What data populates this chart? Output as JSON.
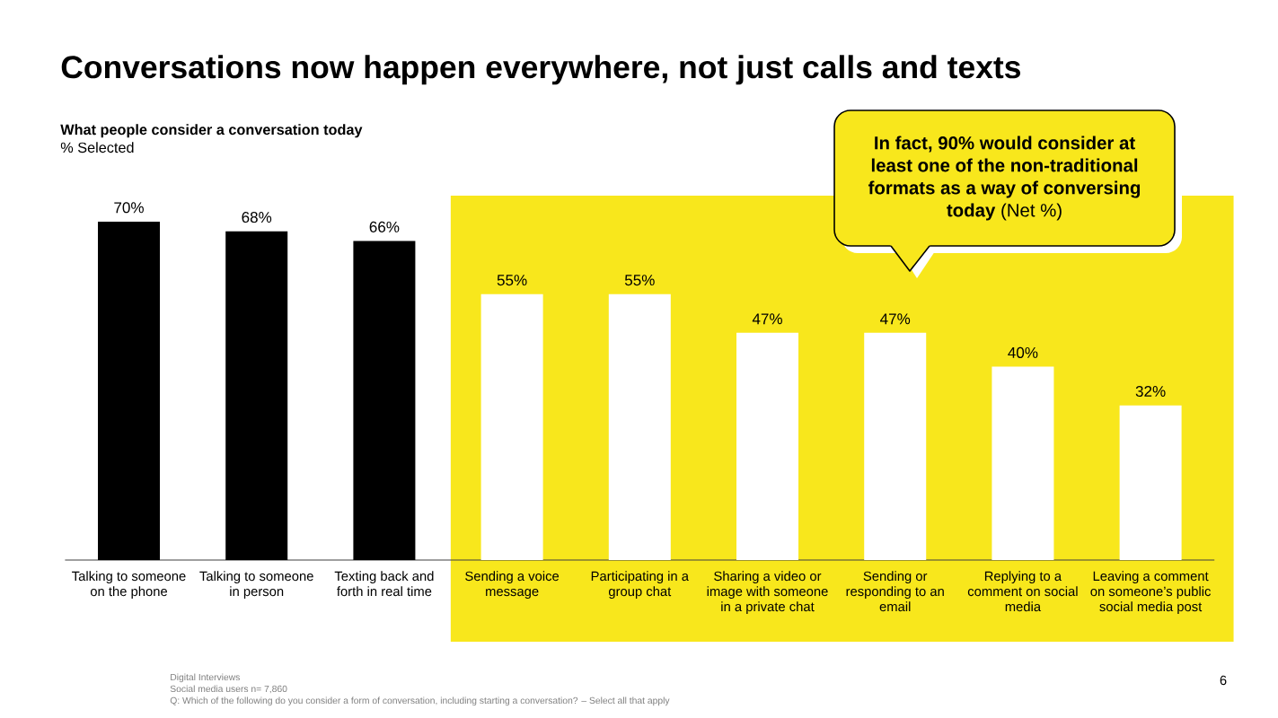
{
  "chart_data": {
    "type": "bar",
    "title": "Conversations now happen everywhere, not just calls and texts",
    "subtitle": "What people consider a conversation today",
    "ylabel": "% Selected",
    "categories": [
      "Talking to someone on the phone",
      "Talking to someone in person",
      "Texting back and forth in real time",
      "Sending a voice message",
      "Participating in a group chat",
      "Sharing a video or image with someone in a private chat",
      "Sending or responding to an email",
      "Replying to a comment on social media",
      "Leaving a comment on someone’s public social media post"
    ],
    "values": [
      70,
      68,
      66,
      55,
      55,
      47,
      47,
      40,
      32
    ],
    "colors": [
      "#000000",
      "#000000",
      "#000000",
      "#ffffff",
      "#ffffff",
      "#ffffff",
      "#ffffff",
      "#ffffff",
      "#ffffff"
    ],
    "value_labels": [
      "70%",
      "68%",
      "66%",
      "55%",
      "55%",
      "47%",
      "47%",
      "40%",
      "32%"
    ],
    "bands": [
      {
        "axis": "x",
        "from": "Sending a voice message",
        "to": "Leaving a comment on someone’s public social media post",
        "color": "#f8e71c"
      }
    ],
    "annotations": [
      "**In fact, 90% would consider at least one of the non-traditional formats as a way of conversing today** (Net %)",
      "Digital Interviews",
      "Social media users n= 7,860",
      "Q: Which of the following do you consider a form of conversation, including starting a conversation? – Select all that apply",
      "6"
    ]
  }
}
